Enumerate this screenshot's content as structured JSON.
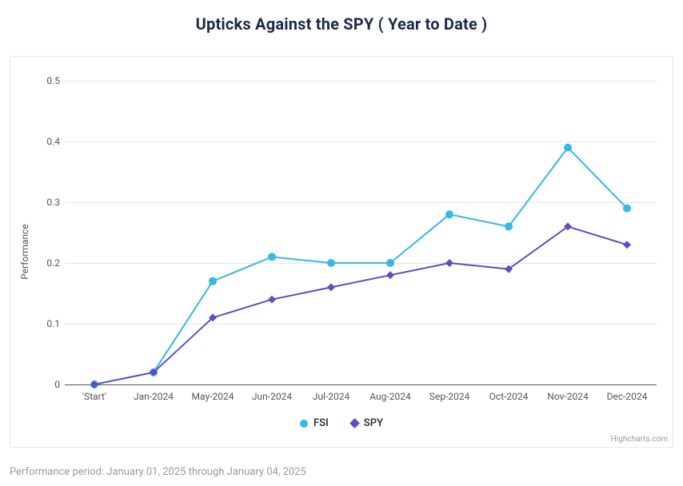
{
  "title": "Upticks Against the SPY ( Year to Date )",
  "footnote": "Performance period: January 01, 2025 through January 04, 2025",
  "credit": "Highcharts.com",
  "chart": {
    "type": "line",
    "background_color": "#ffffff",
    "border_color": "#e8e8ee",
    "grid_color": "#e6e6e6",
    "axis_color": "#555555",
    "label_color": "#555555",
    "label_fontsize": 12,
    "title_color": "#1a2a4a",
    "title_fontsize": 20,
    "title_fontweight": 700,
    "y_axis": {
      "title": "Performance",
      "min": 0,
      "max": 0.5,
      "tick_step": 0.1,
      "ticks": [
        0,
        0.1,
        0.2,
        0.3,
        0.4,
        0.5
      ]
    },
    "x_axis": {
      "categories": [
        "'Start'",
        "Jan-2024",
        "May-2024",
        "Jun-2024",
        "Jul-2024",
        "Aug-2024",
        "Sep-2024",
        "Oct-2024",
        "Nov-2024",
        "Dec-2024"
      ]
    },
    "series": [
      {
        "name": "FSI",
        "color": "#37b6e8",
        "line_width": 2,
        "marker": "circle",
        "marker_size": 5,
        "values": [
          0.0,
          0.02,
          0.17,
          0.21,
          0.2,
          0.2,
          0.28,
          0.26,
          0.39,
          0.29
        ]
      },
      {
        "name": "SPY",
        "color": "#5b4fc4",
        "line_width": 2,
        "marker": "diamond",
        "marker_size": 5,
        "values": [
          0.0,
          0.02,
          0.11,
          0.14,
          0.16,
          0.18,
          0.2,
          0.19,
          0.26,
          0.23
        ]
      }
    ],
    "legend": {
      "position": "bottom-center",
      "fontsize": 13,
      "fontweight": 600
    }
  }
}
